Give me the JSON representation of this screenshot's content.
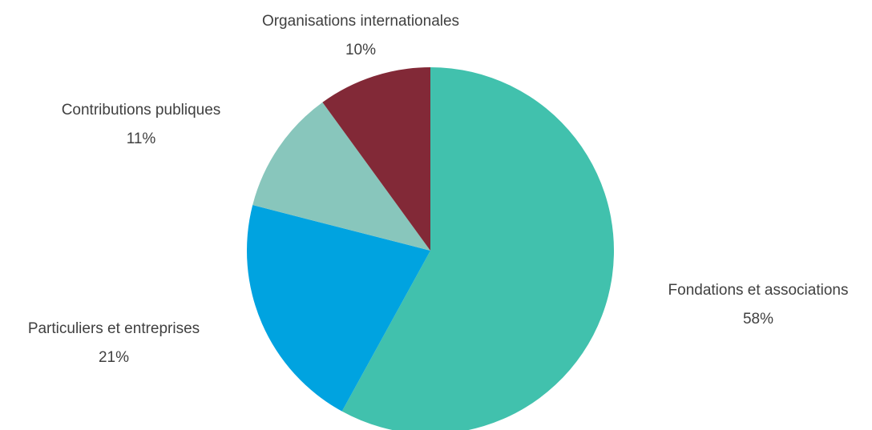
{
  "chart_data": {
    "type": "pie",
    "start_angle_deg": 0,
    "direction": "clockwise",
    "slices": [
      {
        "label": "Fondations et associations",
        "value": 58,
        "value_label": "58%",
        "color": "#41C1AD"
      },
      {
        "label": "Particuliers et entreprises",
        "value": 21,
        "value_label": "21%",
        "color": "#00A3E0"
      },
      {
        "label": "Contributions publiques",
        "value": 11,
        "value_label": "11%",
        "color": "#88C6BC"
      },
      {
        "label": "Organisations internationales",
        "value": 10,
        "value_label": "10%",
        "color": "#822937"
      }
    ]
  }
}
